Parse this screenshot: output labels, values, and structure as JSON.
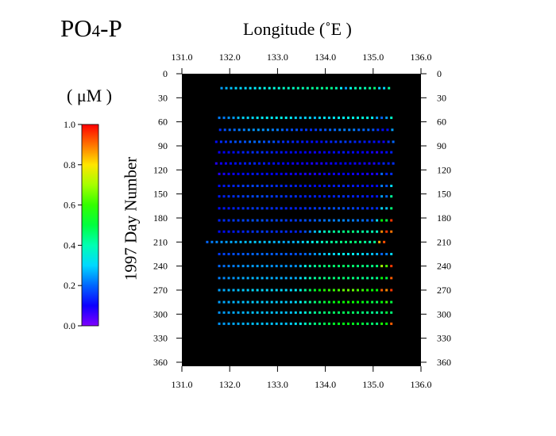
{
  "title": {
    "main": "PO",
    "sub": "4",
    "tail": "-P"
  },
  "x_axis_title": "Longitude  (˚E )",
  "y_axis_title": "1997  Day  Number",
  "colorbar": {
    "unit_label": "( μM )",
    "ticks": [
      "1.0",
      "0.8",
      "0.6",
      "0.4",
      "0.2",
      "0.0"
    ],
    "tick_values": [
      1.0,
      0.8,
      0.6,
      0.4,
      0.2,
      0.0
    ],
    "range": [
      0.0,
      1.0
    ]
  },
  "chart_data": {
    "type": "scatter",
    "title": "PO4-P",
    "xlabel": "Longitude  (˚E )",
    "ylabel": "1997  Day  Number",
    "xlim": [
      131.0,
      136.0
    ],
    "ylim": [
      0,
      365
    ],
    "y_inverted": true,
    "background": "#000000",
    "x_ticks": [
      "131.0",
      "132.0",
      "133.0",
      "134.0",
      "135.0",
      "136.0"
    ],
    "x_tick_values": [
      131.0,
      132.0,
      133.0,
      134.0,
      135.0,
      136.0
    ],
    "y_ticks": [
      "0",
      "30",
      "60",
      "90",
      "120",
      "150",
      "180",
      "210",
      "240",
      "270",
      "300",
      "330",
      "360"
    ],
    "y_tick_values": [
      0,
      30,
      60,
      90,
      120,
      150,
      180,
      210,
      240,
      270,
      300,
      330,
      360
    ],
    "colormap": "rainbow",
    "color_value": "PO4-P (μM)",
    "rows": [
      {
        "day": 18,
        "x_start": 131.83,
        "x_end": 135.37,
        "step": 0.1,
        "values": [
          0.25,
          0.27,
          0.28,
          0.3,
          0.3,
          0.3,
          0.31,
          0.32,
          0.33,
          0.35,
          0.35,
          0.36,
          0.36,
          0.38,
          0.38,
          0.38,
          0.4,
          0.4,
          0.4,
          0.42,
          0.42,
          0.42,
          0.43,
          0.43,
          0.4,
          0.32,
          0.25,
          0.35,
          0.4,
          0.4,
          0.4,
          0.42,
          0.45,
          0.3,
          0.3,
          0.42
        ]
      },
      {
        "day": 55,
        "x_start": 131.78,
        "x_end": 135.37,
        "step": 0.1,
        "values": [
          0.22,
          0.22,
          0.24,
          0.25,
          0.28,
          0.3,
          0.3,
          0.3,
          0.32,
          0.32,
          0.33,
          0.32,
          0.33,
          0.35,
          0.33,
          0.32,
          0.3,
          0.28,
          0.3,
          0.3,
          0.28,
          0.3,
          0.32,
          0.3,
          0.32,
          0.33,
          0.33,
          0.35,
          0.35,
          0.35,
          0.36,
          0.35,
          0.33,
          0.25,
          0.2,
          0.25,
          0.38
        ]
      },
      {
        "day": 70,
        "x_start": 131.8,
        "x_end": 135.37,
        "step": 0.1,
        "values": [
          0.15,
          0.18,
          0.2,
          0.2,
          0.22,
          0.22,
          0.24,
          0.24,
          0.25,
          0.24,
          0.24,
          0.22,
          0.22,
          0.2,
          0.18,
          0.18,
          0.18,
          0.16,
          0.16,
          0.15,
          0.16,
          0.18,
          0.18,
          0.2,
          0.2,
          0.22,
          0.22,
          0.22,
          0.22,
          0.2,
          0.2,
          0.2,
          0.18,
          0.15,
          0.12,
          0.12,
          0.25
        ]
      },
      {
        "day": 85,
        "x_start": 131.72,
        "x_end": 135.37,
        "step": 0.1,
        "values": [
          0.12,
          0.15,
          0.15,
          0.17,
          0.18,
          0.18,
          0.18,
          0.2,
          0.2,
          0.2,
          0.18,
          0.18,
          0.18,
          0.16,
          0.15,
          0.15,
          0.14,
          0.14,
          0.13,
          0.13,
          0.12,
          0.12,
          0.12,
          0.14,
          0.14,
          0.15,
          0.16,
          0.16,
          0.15,
          0.14,
          0.14,
          0.13,
          0.13,
          0.12,
          0.12,
          0.1,
          0.15,
          0.2
        ]
      },
      {
        "day": 98,
        "x_start": 131.78,
        "x_end": 135.37,
        "step": 0.1,
        "values": [
          0.1,
          0.11,
          0.12,
          0.12,
          0.13,
          0.14,
          0.14,
          0.15,
          0.15,
          0.15,
          0.14,
          0.14,
          0.13,
          0.13,
          0.12,
          0.12,
          0.12,
          0.11,
          0.11,
          0.1,
          0.1,
          0.1,
          0.11,
          0.11,
          0.12,
          0.12,
          0.13,
          0.12,
          0.12,
          0.11,
          0.11,
          0.1,
          0.1,
          0.08,
          0.1,
          0.12,
          0.14
        ]
      },
      {
        "day": 112,
        "x_start": 131.72,
        "x_end": 135.37,
        "step": 0.1,
        "values": [
          0.08,
          0.1,
          0.1,
          0.12,
          0.12,
          0.13,
          0.13,
          0.14,
          0.14,
          0.13,
          0.13,
          0.12,
          0.12,
          0.12,
          0.11,
          0.11,
          0.1,
          0.1,
          0.1,
          0.1,
          0.09,
          0.09,
          0.09,
          0.1,
          0.1,
          0.11,
          0.11,
          0.11,
          0.11,
          0.1,
          0.1,
          0.1,
          0.09,
          0.09,
          0.12,
          0.14,
          0.13,
          0.15
        ]
      },
      {
        "day": 125,
        "x_start": 131.78,
        "x_end": 135.37,
        "step": 0.1,
        "values": [
          0.08,
          0.09,
          0.1,
          0.1,
          0.11,
          0.12,
          0.12,
          0.13,
          0.13,
          0.12,
          0.12,
          0.11,
          0.11,
          0.11,
          0.1,
          0.1,
          0.1,
          0.1,
          0.09,
          0.09,
          0.09,
          0.09,
          0.1,
          0.1,
          0.1,
          0.1,
          0.11,
          0.11,
          0.1,
          0.1,
          0.1,
          0.09,
          0.09,
          0.09,
          0.2,
          0.14,
          0.15
        ]
      },
      {
        "day": 140,
        "x_start": 131.78,
        "x_end": 135.37,
        "step": 0.1,
        "values": [
          0.12,
          0.13,
          0.14,
          0.14,
          0.15,
          0.16,
          0.16,
          0.17,
          0.17,
          0.16,
          0.16,
          0.15,
          0.15,
          0.15,
          0.14,
          0.14,
          0.14,
          0.13,
          0.13,
          0.13,
          0.12,
          0.12,
          0.13,
          0.13,
          0.13,
          0.14,
          0.14,
          0.14,
          0.13,
          0.13,
          0.13,
          0.12,
          0.12,
          0.12,
          0.22,
          0.18,
          0.3
        ]
      },
      {
        "day": 153,
        "x_start": 131.78,
        "x_end": 135.37,
        "step": 0.1,
        "values": [
          0.13,
          0.14,
          0.15,
          0.15,
          0.16,
          0.16,
          0.17,
          0.17,
          0.18,
          0.17,
          0.17,
          0.16,
          0.16,
          0.16,
          0.15,
          0.15,
          0.15,
          0.14,
          0.14,
          0.14,
          0.14,
          0.13,
          0.14,
          0.14,
          0.14,
          0.15,
          0.15,
          0.15,
          0.14,
          0.14,
          0.14,
          0.13,
          0.13,
          0.13,
          0.25,
          0.2,
          0.42
        ]
      },
      {
        "day": 168,
        "x_start": 131.78,
        "x_end": 135.37,
        "step": 0.1,
        "values": [
          0.12,
          0.13,
          0.13,
          0.14,
          0.14,
          0.15,
          0.15,
          0.16,
          0.16,
          0.16,
          0.15,
          0.15,
          0.15,
          0.15,
          0.14,
          0.14,
          0.14,
          0.14,
          0.15,
          0.15,
          0.16,
          0.16,
          0.17,
          0.18,
          0.18,
          0.18,
          0.18,
          0.17,
          0.17,
          0.16,
          0.16,
          0.15,
          0.15,
          0.15,
          0.3,
          0.28,
          0.45
        ]
      },
      {
        "day": 183,
        "x_start": 131.78,
        "x_end": 135.37,
        "step": 0.1,
        "values": [
          0.14,
          0.15,
          0.15,
          0.16,
          0.16,
          0.17,
          0.17,
          0.18,
          0.18,
          0.18,
          0.17,
          0.17,
          0.17,
          0.17,
          0.16,
          0.16,
          0.16,
          0.17,
          0.18,
          0.18,
          0.19,
          0.2,
          0.21,
          0.22,
          0.22,
          0.23,
          0.23,
          0.22,
          0.22,
          0.21,
          0.21,
          0.2,
          0.2,
          0.3,
          0.55,
          0.5,
          0.95
        ]
      },
      {
        "day": 197,
        "x_start": 131.78,
        "x_end": 135.37,
        "step": 0.1,
        "values": [
          0.12,
          0.12,
          0.13,
          0.13,
          0.14,
          0.14,
          0.15,
          0.15,
          0.16,
          0.16,
          0.16,
          0.15,
          0.15,
          0.15,
          0.15,
          0.14,
          0.14,
          0.15,
          0.18,
          0.22,
          0.28,
          0.32,
          0.38,
          0.4,
          0.42,
          0.42,
          0.44,
          0.45,
          0.45,
          0.42,
          0.42,
          0.4,
          0.4,
          0.38,
          0.88,
          0.95,
          0.9
        ]
      },
      {
        "day": 210,
        "x_start": 131.53,
        "x_end": 135.3,
        "step": 0.1,
        "values": [
          0.2,
          0.22,
          0.23,
          0.24,
          0.25,
          0.26,
          0.26,
          0.27,
          0.28,
          0.28,
          0.29,
          0.28,
          0.28,
          0.28,
          0.27,
          0.27,
          0.26,
          0.26,
          0.27,
          0.28,
          0.3,
          0.32,
          0.34,
          0.36,
          0.38,
          0.4,
          0.42,
          0.42,
          0.44,
          0.44,
          0.45,
          0.45,
          0.44,
          0.42,
          0.4,
          0.42,
          0.85,
          0.93
        ]
      },
      {
        "day": 225,
        "x_start": 131.78,
        "x_end": 135.37,
        "step": 0.1,
        "values": [
          0.16,
          0.17,
          0.17,
          0.18,
          0.18,
          0.19,
          0.19,
          0.2,
          0.2,
          0.2,
          0.2,
          0.19,
          0.19,
          0.19,
          0.19,
          0.18,
          0.18,
          0.19,
          0.2,
          0.22,
          0.24,
          0.26,
          0.28,
          0.3,
          0.3,
          0.32,
          0.33,
          0.32,
          0.32,
          0.3,
          0.3,
          0.28,
          0.28,
          0.26,
          0.2,
          0.22,
          0.3
        ]
      },
      {
        "day": 240,
        "x_start": 131.78,
        "x_end": 135.37,
        "step": 0.1,
        "values": [
          0.2,
          0.21,
          0.22,
          0.22,
          0.23,
          0.24,
          0.24,
          0.25,
          0.25,
          0.25,
          0.25,
          0.24,
          0.24,
          0.24,
          0.24,
          0.24,
          0.24,
          0.28,
          0.35,
          0.4,
          0.42,
          0.45,
          0.45,
          0.46,
          0.46,
          0.46,
          0.47,
          0.46,
          0.46,
          0.45,
          0.45,
          0.44,
          0.44,
          0.45,
          0.7,
          0.62,
          0.95
        ]
      },
      {
        "day": 255,
        "x_start": 131.78,
        "x_end": 135.37,
        "step": 0.1,
        "values": [
          0.22,
          0.23,
          0.24,
          0.24,
          0.25,
          0.26,
          0.26,
          0.27,
          0.27,
          0.27,
          0.27,
          0.26,
          0.26,
          0.26,
          0.26,
          0.26,
          0.26,
          0.3,
          0.36,
          0.4,
          0.42,
          0.44,
          0.44,
          0.45,
          0.45,
          0.45,
          0.46,
          0.45,
          0.45,
          0.44,
          0.44,
          0.43,
          0.43,
          0.44,
          0.55,
          0.5,
          0.92
        ]
      },
      {
        "day": 270,
        "x_start": 131.78,
        "x_end": 135.37,
        "step": 0.1,
        "values": [
          0.25,
          0.26,
          0.27,
          0.27,
          0.28,
          0.29,
          0.29,
          0.3,
          0.3,
          0.3,
          0.3,
          0.3,
          0.3,
          0.3,
          0.3,
          0.3,
          0.32,
          0.36,
          0.42,
          0.48,
          0.52,
          0.55,
          0.58,
          0.6,
          0.6,
          0.62,
          0.64,
          0.65,
          0.64,
          0.62,
          0.6,
          0.58,
          0.56,
          0.55,
          0.92,
          0.88,
          0.95
        ]
      },
      {
        "day": 285,
        "x_start": 131.78,
        "x_end": 135.37,
        "step": 0.1,
        "values": [
          0.25,
          0.26,
          0.26,
          0.27,
          0.27,
          0.28,
          0.28,
          0.29,
          0.29,
          0.29,
          0.29,
          0.29,
          0.29,
          0.29,
          0.29,
          0.29,
          0.31,
          0.34,
          0.38,
          0.42,
          0.45,
          0.48,
          0.5,
          0.52,
          0.54,
          0.55,
          0.56,
          0.57,
          0.56,
          0.55,
          0.54,
          0.52,
          0.5,
          0.48,
          0.55,
          0.6,
          0.5
        ]
      },
      {
        "day": 298,
        "x_start": 131.78,
        "x_end": 135.37,
        "step": 0.1,
        "values": [
          0.24,
          0.25,
          0.25,
          0.26,
          0.26,
          0.27,
          0.27,
          0.28,
          0.28,
          0.28,
          0.28,
          0.28,
          0.28,
          0.28,
          0.28,
          0.28,
          0.3,
          0.32,
          0.36,
          0.4,
          0.42,
          0.44,
          0.45,
          0.46,
          0.47,
          0.47,
          0.48,
          0.48,
          0.47,
          0.46,
          0.45,
          0.44,
          0.43,
          0.42,
          0.45,
          0.5,
          0.45
        ]
      },
      {
        "day": 312,
        "x_start": 131.78,
        "x_end": 135.37,
        "step": 0.1,
        "values": [
          0.24,
          0.25,
          0.25,
          0.26,
          0.26,
          0.27,
          0.27,
          0.28,
          0.28,
          0.28,
          0.28,
          0.28,
          0.28,
          0.28,
          0.28,
          0.29,
          0.31,
          0.34,
          0.38,
          0.42,
          0.44,
          0.46,
          0.48,
          0.5,
          0.52,
          0.53,
          0.54,
          0.54,
          0.53,
          0.52,
          0.5,
          0.48,
          0.46,
          0.45,
          0.58,
          0.55,
          0.92
        ]
      }
    ]
  }
}
